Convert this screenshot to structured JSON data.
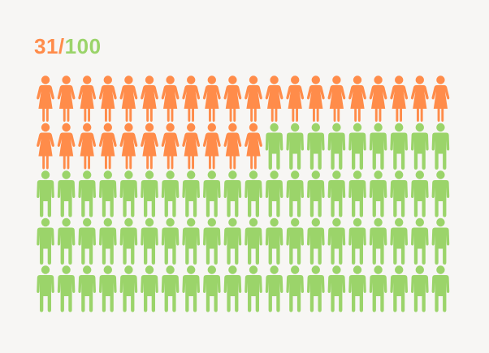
{
  "chart_data": {
    "type": "pictogram",
    "numerator": "31",
    "separator": "/",
    "denominator": "100",
    "total": 100,
    "highlighted": 31,
    "highlighted_icon": "woman-icon",
    "base_icon": "man-icon",
    "colors": {
      "highlighted": "#ff8c4a",
      "base": "#9bd46a",
      "background": "#f7f6f4"
    }
  }
}
